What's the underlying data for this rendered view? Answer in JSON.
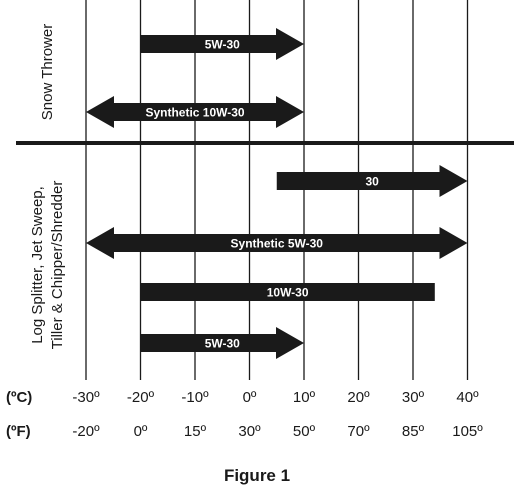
{
  "sections": [
    {
      "label": "Snow Thrower",
      "bars": [
        {
          "label": "5W-30",
          "from_c": -20,
          "to_c": 10,
          "arrow_left": false,
          "arrow_right": true
        },
        {
          "label": "Synthetic 10W-30",
          "from_c": -30,
          "to_c": 10,
          "arrow_left": true,
          "arrow_right": true
        }
      ]
    },
    {
      "label_lines": [
        "Log Splitter, Jet Sweep,",
        "Tiller & Chipper/Shredder"
      ],
      "bars": [
        {
          "label": "30",
          "from_c": 5,
          "to_c": 40,
          "arrow_left": false,
          "arrow_right": true
        },
        {
          "label": "Synthetic 5W-30",
          "from_c": -30,
          "to_c": 40,
          "arrow_left": true,
          "arrow_right": true
        },
        {
          "label": "10W-30",
          "from_c": -20,
          "to_c": 34,
          "arrow_left": false,
          "arrow_right": false
        },
        {
          "label": "5W-30",
          "from_c": -20,
          "to_c": 10,
          "arrow_left": false,
          "arrow_right": true
        }
      ]
    }
  ],
  "axis": {
    "celsius_unit": "(ºC)",
    "fahrenheit_unit": "(ºF)",
    "celsius_ticks": [
      {
        "c": -30,
        "label": "-30º"
      },
      {
        "c": -20,
        "label": "-20º"
      },
      {
        "c": -10,
        "label": "-10º"
      },
      {
        "c": 0,
        "label": "0º"
      },
      {
        "c": 10,
        "label": "10º"
      },
      {
        "c": 20,
        "label": "20º"
      },
      {
        "c": 30,
        "label": "30º"
      },
      {
        "c": 40,
        "label": "40º"
      }
    ],
    "fahrenheit_ticks": [
      {
        "c": -30,
        "label": "-20º"
      },
      {
        "c": -20,
        "label": "0º"
      },
      {
        "c": -10,
        "label": "15º"
      },
      {
        "c": 0,
        "label": "30º"
      },
      {
        "c": 10,
        "label": "50º"
      },
      {
        "c": 20,
        "label": "70º"
      },
      {
        "c": 30,
        "label": "85º"
      },
      {
        "c": 40,
        "label": "105º"
      }
    ]
  },
  "caption": "Figure 1",
  "colors": {
    "ink": "#1a1a1a",
    "bar_text": "#ffffff",
    "background": "#ffffff"
  }
}
